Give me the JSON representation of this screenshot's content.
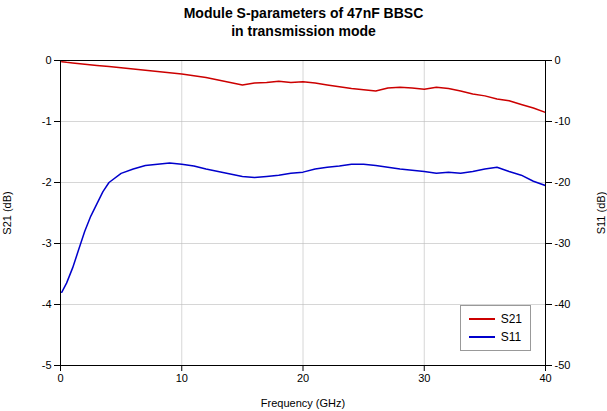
{
  "chart_data": {
    "type": "line",
    "title": "Module S-parameters of 47nF BBSC",
    "subtitle": "in transmission mode",
    "xlabel": "Frequency (GHz)",
    "ylabel": "S21 (dB)",
    "y2label": "S11 (dB)",
    "xlim": [
      0,
      40
    ],
    "ylim": [
      -5,
      0
    ],
    "y2lim": [
      -50,
      0
    ],
    "xticks": [
      0,
      10,
      20,
      30,
      40
    ],
    "yticks": [
      -5,
      -4,
      -3,
      -2,
      -1,
      0
    ],
    "y2ticks": [
      -50,
      -40,
      -30,
      -20,
      -10,
      0
    ],
    "grid": true,
    "legend": "lower right",
    "series": [
      {
        "name": "S21",
        "color": "#cc0000",
        "x": [
          0.1,
          0.5,
          1.0,
          2.0,
          3.0,
          4.0,
          5.0,
          6.0,
          7.0,
          8.0,
          9.0,
          10.0,
          11.0,
          12.0,
          13.0,
          14.0,
          15.0,
          16.0,
          17.0,
          18.0,
          19.0,
          20.0,
          21.0,
          22.0,
          23.0,
          24.0,
          25.0,
          26.0,
          27.0,
          28.0,
          29.0,
          30.0,
          31.0,
          32.0,
          33.0,
          34.0,
          35.0,
          36.0,
          37.0,
          38.0,
          39.0,
          40.0
        ],
        "values": [
          -0.02,
          -0.03,
          -0.04,
          -0.06,
          -0.08,
          -0.1,
          -0.12,
          -0.14,
          -0.16,
          -0.18,
          -0.2,
          -0.22,
          -0.25,
          -0.28,
          -0.32,
          -0.36,
          -0.4,
          -0.37,
          -0.36,
          -0.34,
          -0.36,
          -0.35,
          -0.37,
          -0.4,
          -0.43,
          -0.46,
          -0.48,
          -0.5,
          -0.45,
          -0.44,
          -0.45,
          -0.47,
          -0.44,
          -0.46,
          -0.5,
          -0.55,
          -0.58,
          -0.63,
          -0.66,
          -0.72,
          -0.78,
          -0.85
        ]
      },
      {
        "name": "S11",
        "color": "#0000cc",
        "axis": "y2",
        "x": [
          0.1,
          0.5,
          1.0,
          1.5,
          2.0,
          2.5,
          3.0,
          3.5,
          4.0,
          5.0,
          6.0,
          7.0,
          8.0,
          9.0,
          10.0,
          11.0,
          12.0,
          13.0,
          14.0,
          15.0,
          16.0,
          17.0,
          18.0,
          19.0,
          20.0,
          21.0,
          22.0,
          23.0,
          24.0,
          25.0,
          26.0,
          27.0,
          28.0,
          29.0,
          30.0,
          31.0,
          32.0,
          33.0,
          34.0,
          35.0,
          36.0,
          37.0,
          38.0,
          39.0,
          40.0
        ],
        "values": [
          -38.0,
          -36.5,
          -34.0,
          -31.0,
          -28.0,
          -25.5,
          -23.5,
          -21.5,
          -20.0,
          -18.5,
          -17.8,
          -17.2,
          -17.0,
          -16.8,
          -17.0,
          -17.3,
          -17.8,
          -18.2,
          -18.6,
          -19.0,
          -19.2,
          -19.0,
          -18.8,
          -18.5,
          -18.3,
          -17.8,
          -17.5,
          -17.3,
          -17.0,
          -17.0,
          -17.2,
          -17.5,
          -17.8,
          -18.0,
          -18.2,
          -18.5,
          -18.3,
          -18.5,
          -18.2,
          -17.8,
          -17.5,
          -18.2,
          -18.8,
          -19.8,
          -20.5
        ]
      }
    ]
  }
}
